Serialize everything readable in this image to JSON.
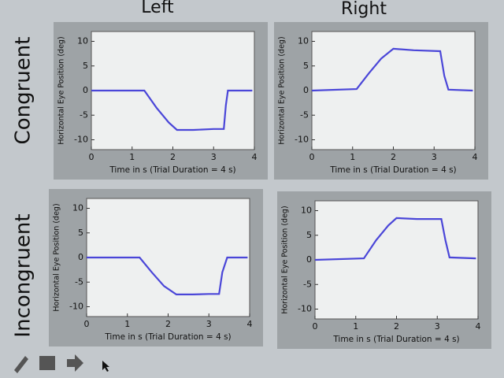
{
  "columns": [
    "Left",
    "Right"
  ],
  "rows": [
    "Congruent",
    "Incongruent"
  ],
  "chart_data": [
    {
      "type": "line",
      "xlabel": "Time in s (Trial Duration = 4 s)",
      "ylabel": "Horizontal Eye Position (deg)",
      "xlim": [
        0,
        4
      ],
      "xticks": [
        0,
        1,
        2,
        3,
        4
      ],
      "ylim": [
        -12,
        12
      ],
      "yticks": [
        -10,
        -5,
        0,
        5,
        10
      ],
      "x": [
        0,
        1.3,
        1.6,
        1.9,
        2.1,
        2.5,
        3.0,
        3.25,
        3.3,
        3.35,
        3.95
      ],
      "series": [
        {
          "color": "#4a46d8",
          "values": [
            0,
            0,
            -3.5,
            -6.5,
            -8,
            -8,
            -7.8,
            -7.8,
            -3,
            0,
            0
          ]
        }
      ]
    },
    {
      "type": "line",
      "xlabel": "Time in s (Trial Duration = 4 s)",
      "ylabel": "Horizontal Eye Position (deg)",
      "xlim": [
        0,
        4
      ],
      "xticks": [
        0,
        1,
        2,
        3,
        4
      ],
      "ylim": [
        -12,
        12
      ],
      "yticks": [
        -10,
        -5,
        0,
        5,
        10
      ],
      "x": [
        0,
        1.1,
        1.4,
        1.7,
        2.0,
        2.5,
        3.15,
        3.25,
        3.35,
        3.95
      ],
      "series": [
        {
          "color": "#4a46d8",
          "values": [
            0,
            0.3,
            3.5,
            6.5,
            8.5,
            8.2,
            8,
            3,
            0.2,
            0
          ]
        }
      ]
    },
    {
      "type": "line",
      "xlabel": "Time in s (Trial Duration = 4 s)",
      "ylabel": "Horizontal Eye Position (deg)",
      "xlim": [
        0,
        4
      ],
      "xticks": [
        0,
        1,
        2,
        3,
        4
      ],
      "ylim": [
        -12,
        12
      ],
      "yticks": [
        -10,
        -5,
        0,
        5,
        10
      ],
      "x": [
        0,
        1.3,
        1.6,
        1.9,
        2.2,
        2.6,
        3.0,
        3.25,
        3.33,
        3.45,
        3.95
      ],
      "series": [
        {
          "color": "#4a46d8",
          "values": [
            0,
            0,
            -3,
            -5.8,
            -7.5,
            -7.5,
            -7.4,
            -7.4,
            -3,
            0,
            0
          ]
        }
      ]
    },
    {
      "type": "line",
      "xlabel": "Time in s (Trial Duration = 4 s)",
      "ylabel": "Horizontal Eye Position (deg)",
      "xlim": [
        0,
        4
      ],
      "xticks": [
        0,
        1,
        2,
        3,
        4
      ],
      "ylim": [
        -12,
        12
      ],
      "yticks": [
        -10,
        -5,
        0,
        5,
        10
      ],
      "x": [
        0,
        1.2,
        1.5,
        1.8,
        2.0,
        2.5,
        3.1,
        3.2,
        3.3,
        3.95
      ],
      "series": [
        {
          "color": "#4a46d8",
          "values": [
            0,
            0.3,
            4,
            7,
            8.5,
            8.3,
            8.3,
            4,
            0.5,
            0.3
          ]
        }
      ]
    }
  ]
}
